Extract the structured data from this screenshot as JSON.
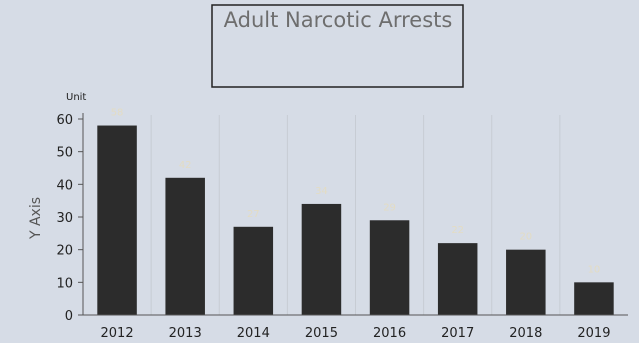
{
  "chart_data": {
    "type": "bar",
    "title": "Adult Narcotic Arrests",
    "ylabel": "Y Axis",
    "unit_label": "Unit",
    "categories": [
      "2012",
      "2013",
      "2014",
      "2015",
      "2016",
      "2017",
      "2018",
      "2019"
    ],
    "values": [
      58,
      42,
      27,
      34,
      29,
      22,
      20,
      10
    ],
    "ylim": [
      0,
      60
    ],
    "yticks": [
      0,
      10,
      20,
      30,
      40,
      50,
      60
    ],
    "grid": "vertical",
    "legend": "none",
    "bar_color": "#2c2c2c",
    "value_label_color": "#e3dcc4"
  }
}
